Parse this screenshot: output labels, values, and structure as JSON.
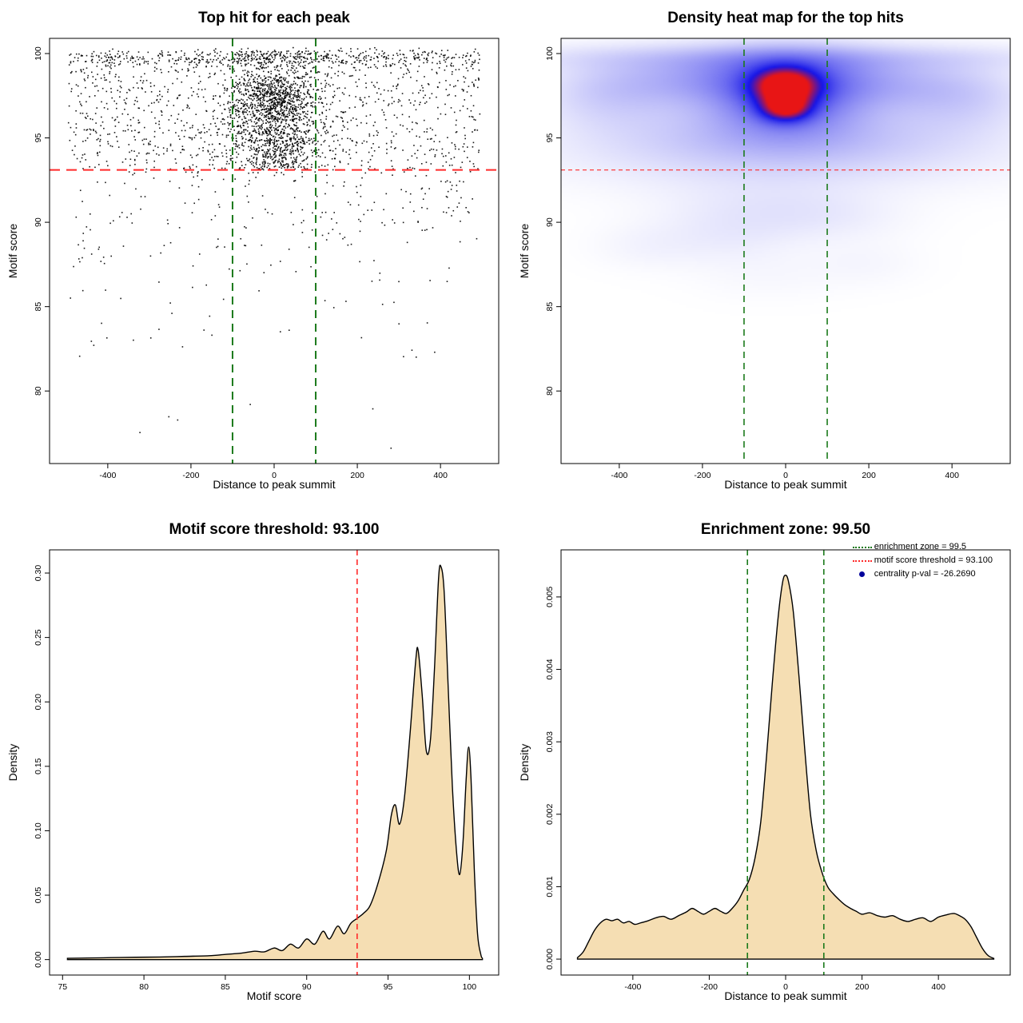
{
  "colors": {
    "points": "#000000",
    "threshold": "#ff2a2a",
    "zone": "#1b7a1b",
    "fill": "#f5deb3",
    "curve": "#000000",
    "heat_low": "#ffffff",
    "heat_mid": "#1515e8",
    "heat_high": "#e81515",
    "legend_dot": "#00009b"
  },
  "chart_data": [
    {
      "id": "top-hits-scatter",
      "type": "scatter",
      "title": "Top hit for each peak",
      "xlabel": "Distance to peak summit",
      "ylabel": "Motif score",
      "xlim": [
        -540,
        540
      ],
      "ylim": [
        75.7,
        100.9
      ],
      "xticks": [
        -400,
        -200,
        0,
        200,
        400
      ],
      "yticks": [
        80,
        85,
        90,
        95,
        100
      ],
      "threshold_line_y": 93.1,
      "enrichment_zone_x": [
        -100,
        100
      ],
      "point_clusters": [
        {
          "n": 550,
          "x": [
            "n",
            0,
            55
          ],
          "y": [
            "n",
            97.9,
            0.85
          ]
        },
        {
          "n": 420,
          "x": [
            "n",
            0,
            48
          ],
          "y": [
            "n",
            96.6,
            0.75
          ]
        },
        {
          "n": 320,
          "x": [
            "n",
            0,
            75
          ],
          "y": [
            "n",
            95.2,
            0.9
          ]
        },
        {
          "n": 260,
          "x": [
            "n",
            0,
            42
          ],
          "y": [
            "u",
            93.1,
            95.0
          ]
        },
        {
          "n": 650,
          "x": [
            "u",
            -495,
            495
          ],
          "y": [
            "u",
            95.3,
            99.3
          ]
        },
        {
          "n": 520,
          "x": [
            "u",
            -495,
            495
          ],
          "y": [
            "n",
            99.75,
            0.3
          ]
        },
        {
          "n": 150,
          "x": [
            "n",
            -20,
            90
          ],
          "y": [
            "u",
            99.4,
            100.15
          ]
        },
        {
          "n": 380,
          "x": [
            "u",
            -495,
            495
          ],
          "y": [
            "u",
            93.15,
            95.5
          ]
        },
        {
          "n": 230,
          "x": [
            "u",
            -490,
            490
          ],
          "y": [
            "hn",
            93.0,
            3.2,
            76.3
          ]
        },
        {
          "n": 40,
          "x": [
            "u",
            -480,
            480
          ],
          "y": [
            "u",
            82,
            88
          ]
        },
        {
          "n": 6,
          "x": [
            "u",
            -400,
            420
          ],
          "y": [
            "u",
            76.5,
            79.5
          ]
        }
      ]
    },
    {
      "id": "density-heatmap",
      "type": "heatmap",
      "title": "Density heat map for the top hits",
      "xlabel": "Distance to peak summit",
      "ylabel": "Motif score",
      "xlim": [
        -540,
        540
      ],
      "ylim": [
        75.7,
        100.9
      ],
      "xticks": [
        -400,
        -200,
        0,
        200,
        400
      ],
      "yticks": [
        80,
        85,
        90,
        95,
        100
      ],
      "threshold_line_y": 93.1,
      "enrichment_zone_x": [
        -100,
        100
      ],
      "blobs": [
        {
          "x": 0,
          "y": 98.1,
          "sx": 52,
          "sy": 0.7,
          "a": 1.0
        },
        {
          "x": 0,
          "y": 96.8,
          "sx": 40,
          "sy": 0.55,
          "a": 0.85
        },
        {
          "x": 0,
          "y": 97.5,
          "sx": 115,
          "sy": 1.5,
          "a": 0.45
        },
        {
          "x": 0,
          "y": 98.9,
          "sx": 180,
          "sy": 1.0,
          "a": 0.22
        },
        {
          "x": 0,
          "y": 96.3,
          "sx": 260,
          "sy": 2.0,
          "a": 0.16
        },
        {
          "x": 0,
          "y": 99.75,
          "sx": 430,
          "sy": 0.55,
          "a": 0.14
        },
        {
          "x": -250,
          "y": 98.4,
          "sx": 150,
          "sy": 1.0,
          "a": 0.13
        },
        {
          "x": 250,
          "y": 98.1,
          "sx": 150,
          "sy": 1.0,
          "a": 0.12
        },
        {
          "x": -430,
          "y": 97.5,
          "sx": 110,
          "sy": 1.4,
          "a": 0.11
        },
        {
          "x": 430,
          "y": 97.3,
          "sx": 110,
          "sy": 1.4,
          "a": 0.11
        },
        {
          "x": 0,
          "y": 94.9,
          "sx": 300,
          "sy": 1.1,
          "a": 0.09
        },
        {
          "x": 0,
          "y": 93.6,
          "sx": 380,
          "sy": 1.2,
          "a": 0.06
        },
        {
          "x": -60,
          "y": 91.0,
          "sx": 170,
          "sy": 1.2,
          "a": 0.05
        },
        {
          "x": -140,
          "y": 89.2,
          "sx": 110,
          "sy": 1.1,
          "a": 0.045
        },
        {
          "x": 90,
          "y": 90.3,
          "sx": 130,
          "sy": 1.0,
          "a": 0.04
        },
        {
          "x": -330,
          "y": 88.6,
          "sx": 90,
          "sy": 0.9,
          "a": 0.028
        },
        {
          "x": 190,
          "y": 87.6,
          "sx": 90,
          "sy": 0.9,
          "a": 0.022
        },
        {
          "x": -40,
          "y": 86.9,
          "sx": 120,
          "sy": 1.0,
          "a": 0.018
        }
      ]
    },
    {
      "id": "motif-score-density",
      "type": "area",
      "title": "Motif score threshold: 93.100",
      "xlabel": "Motif score",
      "ylabel": "Density",
      "xlim": [
        74.2,
        101.8
      ],
      "ylim": [
        -0.012,
        0.318
      ],
      "xticks": [
        75,
        80,
        85,
        90,
        95,
        100
      ],
      "yticks": [
        0,
        0.05,
        0.1,
        0.15,
        0.2,
        0.25,
        0.3
      ],
      "ytick_labels": [
        "0.00",
        "0.05",
        "0.10",
        "0.15",
        "0.20",
        "0.25",
        "0.30"
      ],
      "threshold_line_x": 93.1,
      "points": [
        [
          75.3,
          0.001
        ],
        [
          76.5,
          0.0012
        ],
        [
          78,
          0.0015
        ],
        [
          79.5,
          0.0018
        ],
        [
          81,
          0.002
        ],
        [
          82.5,
          0.0025
        ],
        [
          84,
          0.003
        ],
        [
          85,
          0.004
        ],
        [
          86,
          0.005
        ],
        [
          86.8,
          0.0065
        ],
        [
          87.4,
          0.006
        ],
        [
          88.0,
          0.009
        ],
        [
          88.5,
          0.007
        ],
        [
          89.0,
          0.012
        ],
        [
          89.5,
          0.009
        ],
        [
          90.0,
          0.016
        ],
        [
          90.5,
          0.012
        ],
        [
          91.0,
          0.022
        ],
        [
          91.4,
          0.016
        ],
        [
          91.9,
          0.026
        ],
        [
          92.3,
          0.02
        ],
        [
          92.7,
          0.028
        ],
        [
          93.1,
          0.032
        ],
        [
          93.5,
          0.036
        ],
        [
          93.9,
          0.042
        ],
        [
          94.4,
          0.06
        ],
        [
          94.9,
          0.085
        ],
        [
          95.2,
          0.112
        ],
        [
          95.45,
          0.12
        ],
        [
          95.7,
          0.105
        ],
        [
          96.0,
          0.125
        ],
        [
          96.35,
          0.175
        ],
        [
          96.7,
          0.232
        ],
        [
          96.85,
          0.24
        ],
        [
          97.1,
          0.205
        ],
        [
          97.35,
          0.162
        ],
        [
          97.6,
          0.17
        ],
        [
          97.85,
          0.225
        ],
        [
          98.1,
          0.295
        ],
        [
          98.25,
          0.305
        ],
        [
          98.45,
          0.285
        ],
        [
          98.7,
          0.21
        ],
        [
          98.95,
          0.135
        ],
        [
          99.2,
          0.085
        ],
        [
          99.4,
          0.066
        ],
        [
          99.6,
          0.09
        ],
        [
          99.8,
          0.14
        ],
        [
          99.95,
          0.165
        ],
        [
          100.1,
          0.14
        ],
        [
          100.3,
          0.07
        ],
        [
          100.5,
          0.02
        ],
        [
          100.7,
          0.004
        ],
        [
          100.8,
          0.001
        ]
      ]
    },
    {
      "id": "summit-distance-density",
      "type": "area",
      "title": "Enrichment zone: 99.50",
      "xlabel": "Distance to peak summit",
      "ylabel": "Density",
      "xlim": [
        -588,
        588
      ],
      "ylim": [
        -0.00022,
        0.00565
      ],
      "xticks": [
        -400,
        -200,
        0,
        200,
        400
      ],
      "yticks": [
        0,
        0.001,
        0.002,
        0.003,
        0.004,
        0.005
      ],
      "ytick_labels": [
        "0.000",
        "0.001",
        "0.002",
        "0.003",
        "0.004",
        "0.005"
      ],
      "enrichment_zone_x": [
        -100,
        100
      ],
      "points": [
        [
          -545,
          2e-05
        ],
        [
          -530,
          0.0001
        ],
        [
          -515,
          0.00025
        ],
        [
          -500,
          0.0004
        ],
        [
          -485,
          0.0005
        ],
        [
          -470,
          0.00055
        ],
        [
          -455,
          0.00053
        ],
        [
          -440,
          0.00055
        ],
        [
          -425,
          0.0005
        ],
        [
          -410,
          0.00052
        ],
        [
          -395,
          0.00048
        ],
        [
          -380,
          0.0005
        ],
        [
          -360,
          0.00053
        ],
        [
          -340,
          0.00057
        ],
        [
          -320,
          0.00059
        ],
        [
          -300,
          0.00055
        ],
        [
          -280,
          0.0006
        ],
        [
          -260,
          0.00065
        ],
        [
          -245,
          0.0007
        ],
        [
          -230,
          0.00066
        ],
        [
          -215,
          0.00062
        ],
        [
          -200,
          0.00066
        ],
        [
          -185,
          0.0007
        ],
        [
          -170,
          0.00066
        ],
        [
          -155,
          0.00063
        ],
        [
          -140,
          0.0007
        ],
        [
          -125,
          0.0008
        ],
        [
          -110,
          0.00095
        ],
        [
          -95,
          0.0011
        ],
        [
          -80,
          0.0014
        ],
        [
          -65,
          0.0019
        ],
        [
          -50,
          0.0028
        ],
        [
          -35,
          0.0038
        ],
        [
          -20,
          0.0047
        ],
        [
          -8,
          0.0052
        ],
        [
          0,
          0.0053
        ],
        [
          8,
          0.0052
        ],
        [
          20,
          0.0048
        ],
        [
          35,
          0.0039
        ],
        [
          50,
          0.0029
        ],
        [
          65,
          0.002
        ],
        [
          80,
          0.0015
        ],
        [
          95,
          0.0012
        ],
        [
          110,
          0.001
        ],
        [
          125,
          0.0009
        ],
        [
          140,
          0.00082
        ],
        [
          155,
          0.00075
        ],
        [
          170,
          0.0007
        ],
        [
          185,
          0.00066
        ],
        [
          200,
          0.00062
        ],
        [
          220,
          0.00064
        ],
        [
          240,
          0.0006
        ],
        [
          260,
          0.00058
        ],
        [
          280,
          0.0006
        ],
        [
          300,
          0.00055
        ],
        [
          320,
          0.00052
        ],
        [
          340,
          0.00055
        ],
        [
          360,
          0.00057
        ],
        [
          380,
          0.00052
        ],
        [
          400,
          0.00058
        ],
        [
          420,
          0.00061
        ],
        [
          440,
          0.00063
        ],
        [
          455,
          0.0006
        ],
        [
          470,
          0.00055
        ],
        [
          485,
          0.00045
        ],
        [
          500,
          0.0003
        ],
        [
          515,
          0.00015
        ],
        [
          530,
          5e-05
        ],
        [
          545,
          1e-05
        ]
      ],
      "legend": [
        {
          "swatch": "line-dotted",
          "color": "#1b7a1b",
          "label": "enrichment zone = 99.5"
        },
        {
          "swatch": "line-dotted",
          "color": "#ff2a2a",
          "label": "motif score threshold = 93.100"
        },
        {
          "swatch": "dot",
          "color": "#00009b",
          "label": "centrality p-val = -26.2690"
        }
      ]
    }
  ]
}
